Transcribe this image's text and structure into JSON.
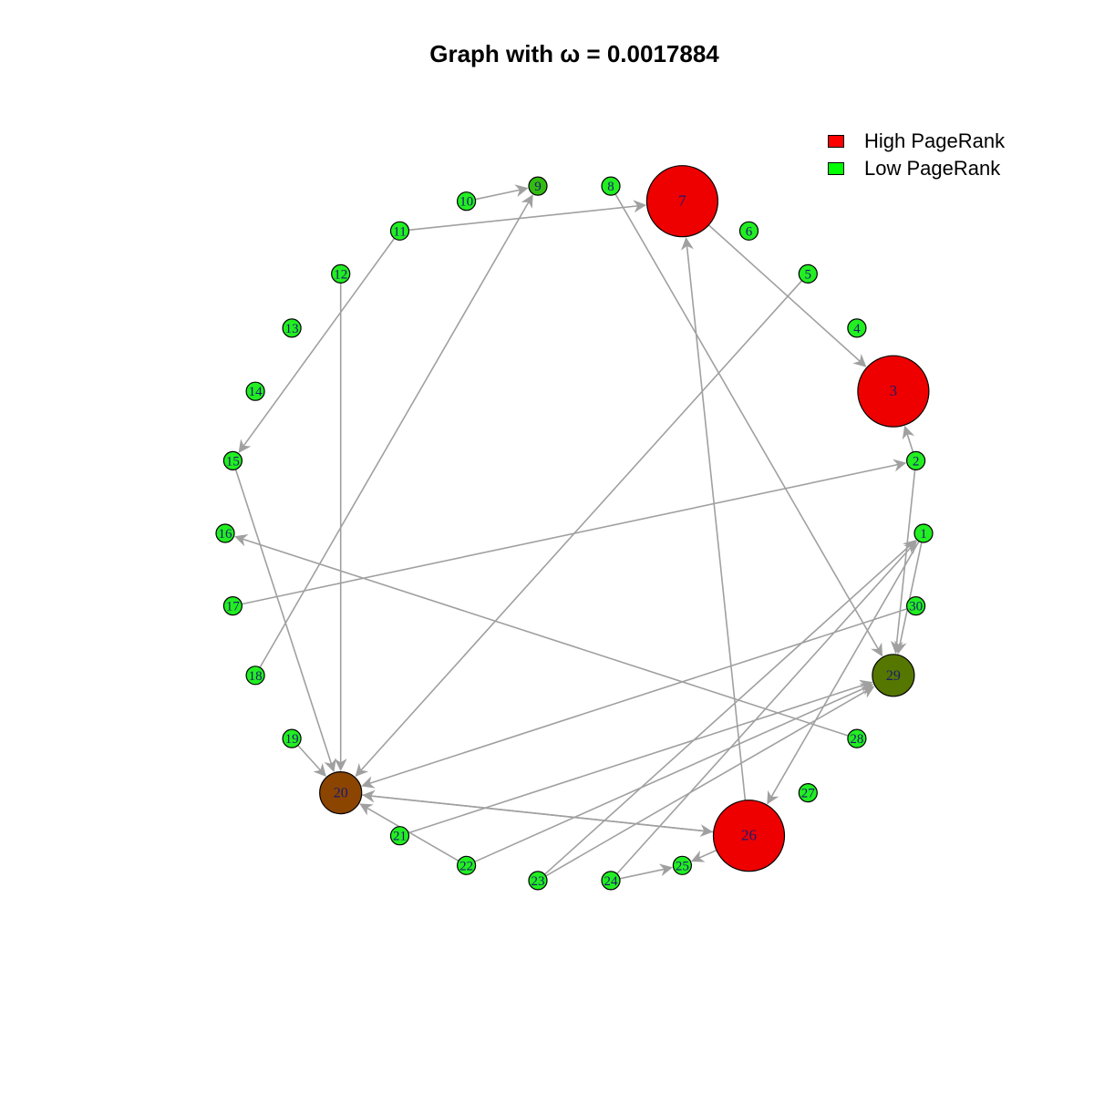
{
  "title": "Graph with ω = 0.0017884",
  "legend": {
    "items": [
      {
        "label": "High PageRank",
        "color": "#ff0000"
      },
      {
        "label": "Low PageRank",
        "color": "#00ff00"
      }
    ]
  },
  "colors": {
    "edge": "#a0a0a0",
    "node_stroke": "#000000",
    "label": "#1a1a6e"
  },
  "nodes": [
    {
      "id": "1",
      "color": "#22ee22",
      "size": "small"
    },
    {
      "id": "2",
      "color": "#22ee22",
      "size": "small"
    },
    {
      "id": "3",
      "color": "#ee0000",
      "size": "large"
    },
    {
      "id": "4",
      "color": "#22ee22",
      "size": "small"
    },
    {
      "id": "5",
      "color": "#22ee22",
      "size": "small"
    },
    {
      "id": "6",
      "color": "#22ee22",
      "size": "small"
    },
    {
      "id": "7",
      "color": "#ee0000",
      "size": "large"
    },
    {
      "id": "8",
      "color": "#22ee22",
      "size": "small"
    },
    {
      "id": "9",
      "color": "#33bb11",
      "size": "small"
    },
    {
      "id": "10",
      "color": "#22ee22",
      "size": "small"
    },
    {
      "id": "11",
      "color": "#22ee22",
      "size": "small"
    },
    {
      "id": "12",
      "color": "#22ee22",
      "size": "small"
    },
    {
      "id": "13",
      "color": "#22ee22",
      "size": "small"
    },
    {
      "id": "14",
      "color": "#22ee22",
      "size": "small"
    },
    {
      "id": "15",
      "color": "#22ee22",
      "size": "small"
    },
    {
      "id": "16",
      "color": "#22ee22",
      "size": "small"
    },
    {
      "id": "17",
      "color": "#22ee22",
      "size": "small"
    },
    {
      "id": "18",
      "color": "#22ee22",
      "size": "small"
    },
    {
      "id": "19",
      "color": "#22ee22",
      "size": "small"
    },
    {
      "id": "20",
      "color": "#8b4500",
      "size": "medium"
    },
    {
      "id": "21",
      "color": "#22ee22",
      "size": "small"
    },
    {
      "id": "22",
      "color": "#22ee22",
      "size": "small"
    },
    {
      "id": "23",
      "color": "#22ee22",
      "size": "small"
    },
    {
      "id": "24",
      "color": "#22ee22",
      "size": "small"
    },
    {
      "id": "25",
      "color": "#22ee22",
      "size": "small"
    },
    {
      "id": "26",
      "color": "#ee0000",
      "size": "large"
    },
    {
      "id": "27",
      "color": "#22ee22",
      "size": "small"
    },
    {
      "id": "28",
      "color": "#22ee22",
      "size": "small"
    },
    {
      "id": "29",
      "color": "#557700",
      "size": "medium"
    },
    {
      "id": "30",
      "color": "#22ee22",
      "size": "small"
    }
  ],
  "edges": [
    [
      "10",
      "9"
    ],
    [
      "11",
      "7"
    ],
    [
      "11",
      "15"
    ],
    [
      "12",
      "20"
    ],
    [
      "15",
      "20"
    ],
    [
      "18",
      "9"
    ],
    [
      "19",
      "20"
    ],
    [
      "7",
      "3"
    ],
    [
      "2",
      "3"
    ],
    [
      "8",
      "29"
    ],
    [
      "5",
      "20"
    ],
    [
      "26",
      "7"
    ],
    [
      "17",
      "2"
    ],
    [
      "28",
      "16"
    ],
    [
      "1",
      "26"
    ],
    [
      "1",
      "29"
    ],
    [
      "2",
      "29"
    ],
    [
      "30",
      "20"
    ],
    [
      "23",
      "1"
    ],
    [
      "21",
      "29"
    ],
    [
      "22",
      "20"
    ],
    [
      "24",
      "1"
    ],
    [
      "26",
      "20"
    ],
    [
      "20",
      "26"
    ],
    [
      "22",
      "29"
    ],
    [
      "23",
      "29"
    ],
    [
      "24",
      "25"
    ],
    [
      "26",
      "25"
    ]
  ]
}
